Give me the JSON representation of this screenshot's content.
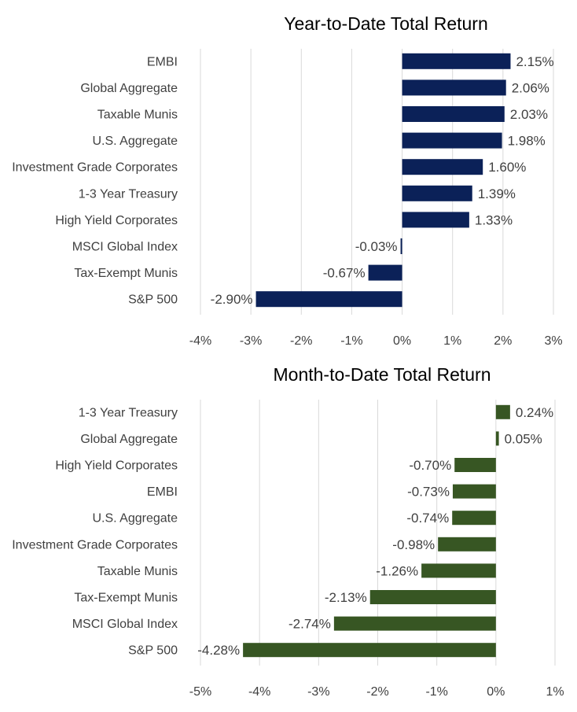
{
  "chart_data": [
    {
      "type": "bar",
      "orientation": "horizontal",
      "title": "Year-to-Date Total Return",
      "xlabel": "",
      "ylabel": "",
      "color": "#0b2158",
      "xlim": [
        -4,
        3
      ],
      "ticks": [
        -4,
        -3,
        -2,
        -1,
        0,
        1,
        2,
        3
      ],
      "tick_labels": [
        "-4%",
        "-3%",
        "-2%",
        "-1%",
        "0%",
        "1%",
        "2%",
        "3%"
      ],
      "grid": true,
      "categories": [
        "EMBI",
        "Global Aggregate",
        "Taxable Munis",
        "U.S. Aggregate",
        "Investment Grade Corporates",
        "1-3 Year Treasury",
        "High Yield Corporates",
        "MSCI Global Index",
        "Tax-Exempt Munis",
        "S&P 500"
      ],
      "values": [
        2.15,
        2.06,
        2.03,
        1.98,
        1.6,
        1.39,
        1.33,
        -0.03,
        -0.67,
        -2.9
      ],
      "labels": [
        "2.15%",
        "2.06%",
        "2.03%",
        "1.98%",
        "1.60%",
        "1.39%",
        "1.33%",
        "-0.03%",
        "-0.67%",
        "-2.90%"
      ]
    },
    {
      "type": "bar",
      "orientation": "horizontal",
      "title": "Month-to-Date Total Return",
      "xlabel": "",
      "ylabel": "",
      "color": "#375623",
      "xlim": [
        -5,
        1
      ],
      "ticks": [
        -5,
        -4,
        -3,
        -2,
        -1,
        0,
        1
      ],
      "tick_labels": [
        "-5%",
        "-4%",
        "-3%",
        "-2%",
        "-1%",
        "0%",
        "1%"
      ],
      "grid": true,
      "categories": [
        "1-3 Year Treasury",
        "Global Aggregate",
        "High Yield Corporates",
        "EMBI",
        "U.S. Aggregate",
        "Investment Grade Corporates",
        "Taxable Munis",
        "Tax-Exempt Munis",
        "MSCI Global Index",
        "S&P 500"
      ],
      "values": [
        0.24,
        0.05,
        -0.7,
        -0.73,
        -0.74,
        -0.98,
        -1.26,
        -2.13,
        -2.74,
        -4.28
      ],
      "labels": [
        "0.24%",
        "0.05%",
        "-0.70%",
        "-0.73%",
        "-0.74%",
        "-0.98%",
        "-1.26%",
        "-2.13%",
        "-2.74%",
        "-4.28%"
      ]
    }
  ]
}
